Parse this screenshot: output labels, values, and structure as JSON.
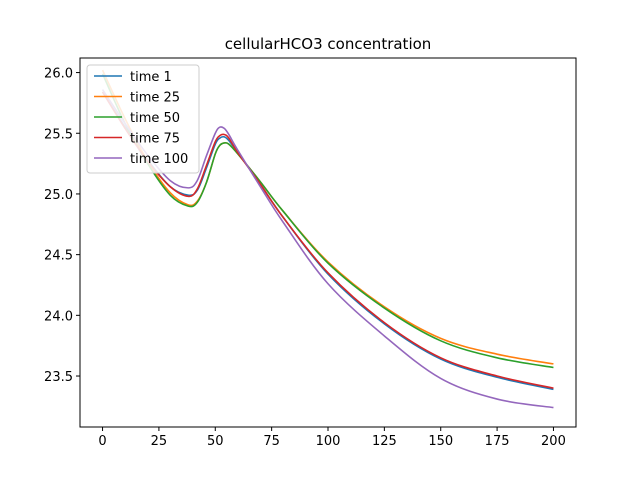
{
  "chart_data": {
    "type": "line",
    "title": "cellularHCO3 concentration",
    "xlabel": "",
    "ylabel": "",
    "xlim": [
      -10,
      210
    ],
    "ylim": [
      23.08,
      26.12
    ],
    "xticks": [
      0,
      25,
      50,
      75,
      100,
      125,
      150,
      175,
      200
    ],
    "yticks": [
      23.5,
      24.0,
      24.5,
      25.0,
      25.5,
      26.0
    ],
    "ytick_labels": [
      "23.5",
      "24.0",
      "24.5",
      "25.0",
      "25.5",
      "26.0"
    ],
    "grid": false,
    "legend_position": "upper-left",
    "x": [
      0,
      10,
      20,
      30,
      38,
      42,
      46,
      50,
      52,
      54,
      56,
      60,
      70,
      80,
      100,
      125,
      150,
      175,
      200
    ],
    "series": [
      {
        "name": "time 1",
        "color": "#1f77b4",
        "values": [
          25.84,
          25.55,
          25.28,
          25.06,
          24.99,
          25.03,
          25.21,
          25.41,
          25.46,
          25.47,
          25.44,
          25.34,
          25.08,
          24.81,
          24.34,
          23.93,
          23.64,
          23.49,
          23.39
        ]
      },
      {
        "name": "time 25",
        "color": "#ff7f0e",
        "values": [
          26.02,
          25.62,
          25.27,
          25.01,
          24.91,
          24.94,
          25.09,
          25.33,
          25.4,
          25.42,
          25.41,
          25.33,
          25.1,
          24.86,
          24.44,
          24.07,
          23.81,
          23.68,
          23.6
        ]
      },
      {
        "name": "time 50",
        "color": "#2ca02c",
        "values": [
          25.99,
          25.58,
          25.25,
          24.99,
          24.9,
          24.93,
          25.09,
          25.33,
          25.4,
          25.42,
          25.41,
          25.33,
          25.1,
          24.86,
          24.43,
          24.06,
          23.79,
          23.65,
          23.57
        ]
      },
      {
        "name": "time 75",
        "color": "#d62728",
        "values": [
          25.84,
          25.54,
          25.27,
          25.06,
          24.98,
          25.04,
          25.23,
          25.43,
          25.48,
          25.49,
          25.46,
          25.34,
          25.08,
          24.81,
          24.35,
          23.94,
          23.65,
          23.5,
          23.4
        ]
      },
      {
        "name": "time 100",
        "color": "#9467bd",
        "values": [
          25.86,
          25.58,
          25.32,
          25.11,
          25.05,
          25.11,
          25.31,
          25.5,
          25.55,
          25.54,
          25.49,
          25.36,
          25.06,
          24.77,
          24.26,
          23.83,
          23.48,
          23.31,
          23.24
        ]
      }
    ]
  }
}
